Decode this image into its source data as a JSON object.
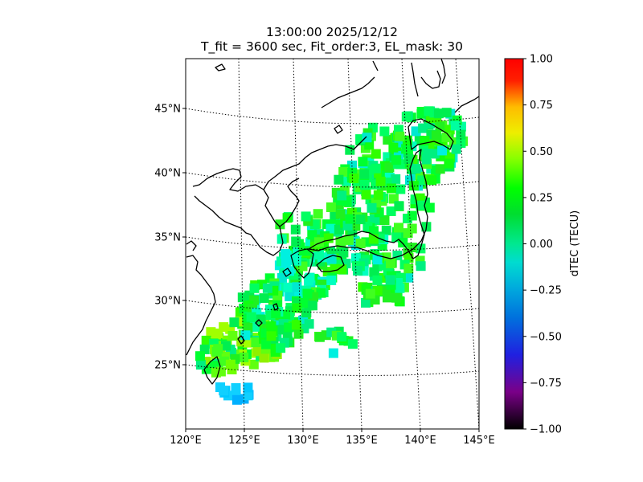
{
  "map": {
    "title_line1": "13:00:00 2025/12/12",
    "title_line2": "T_fit = 3600 sec, Fit_order:3, EL_mask: 30",
    "lon_labels": [
      "120°E",
      "125°E",
      "130°E",
      "135°E",
      "140°E",
      "145°E"
    ],
    "lat_labels": [
      "25°N",
      "30°N",
      "35°N",
      "40°N",
      "45°N"
    ],
    "lon_values": [
      120,
      125,
      130,
      135,
      140,
      145
    ],
    "lat_values": [
      25,
      30,
      35,
      40,
      45
    ]
  },
  "colorbar": {
    "label": "dTEC (TECU)",
    "range": [
      -1.0,
      1.0
    ],
    "ticks": [
      "1.00",
      "0.75",
      "0.50",
      "0.25",
      "0.00",
      "−0.25",
      "−0.50",
      "−0.75",
      "−1.00"
    ],
    "colormap": "nipy_spectral",
    "stops": [
      "#000000",
      "#7a0088",
      "#0000dd",
      "#0090dd",
      "#00aaa0",
      "#00aa00",
      "#00ff00",
      "#c8ff00",
      "#ffff00",
      "#ffaa00",
      "#ff0000",
      "#cccccc"
    ]
  }
}
